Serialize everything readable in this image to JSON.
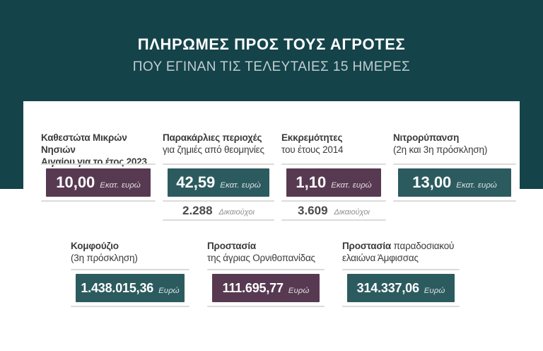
{
  "header": {
    "title": "ΠΛΗΡΩΜΕΣ ΠΡΟΣ ΤΟΥΣ ΑΓΡΟΤΕΣ",
    "subtitle": "ΠΟΥ ΕΓΙΝΑΝ ΤΙΣ ΤΕΛΕΥΤΑΙΕΣ 15 ΗΜΕΡΕΣ"
  },
  "colors": {
    "frame_teal": "#14434A",
    "box_teal": "#2C5B5F",
    "box_purple": "#573A51",
    "divider_gray": "#DBDBDB",
    "card_title_text": "#3B3B3A",
    "subtitle_text": "#C2CECF",
    "beneficiary_number": "#4A4A4A",
    "beneficiary_label": "#8E8E8E"
  },
  "cards": [
    {
      "title_line1_bold": "Καθεστώτα Μικρών Νησιών",
      "title_line2_bold": "Αιγαίου για το έτος 2023",
      "value": "10,00",
      "unit": "Εκατ. ευρώ",
      "box_color": "#573A51"
    },
    {
      "title_line1_bold": "Παρακάρλιες περιοχές",
      "title_line2_regular": "για ζημιές από θεομηνίες",
      "value": "42,59",
      "unit": "Εκατ. ευρώ",
      "box_color": "#2C5B5F",
      "beneficiaries_value": "2.288",
      "beneficiaries_label": "Δικαιούχοι"
    },
    {
      "title_line1_bold": "Εκκρεμότητες",
      "title_line2_regular": "του έτους 2014",
      "value": "1,10",
      "unit": "Εκατ. ευρώ",
      "box_color": "#573A51",
      "beneficiaries_value": "3.609",
      "beneficiaries_label": "Δικαιούχοι"
    },
    {
      "title_line1_bold": "Νιτρορύπανση",
      "title_line2_regular": "(2η και 3η πρόσκληση)",
      "value": "13,00",
      "unit": "Εκατ. ευρώ",
      "box_color": "#2C5B5F"
    },
    {
      "title_line1_bold": "Κομφούζιο",
      "title_line2_regular": "(3η πρόσκληση)",
      "value": "1.438.015,36",
      "unit": "Ευρώ",
      "box_color": "#2C5B5F"
    },
    {
      "title_line1_bold": "Προστασία",
      "title_line2_regular": "της άγριας Ορνιθοπανίδας",
      "value": "111.695,77",
      "unit": "Ευρώ",
      "box_color": "#573A51"
    },
    {
      "title_line1_bold": "Προστασία",
      "title_line1_regular": " παραδοσιακού",
      "title_line2_regular": "ελαιώνα Άμφισσας",
      "value": "314.337,06",
      "unit": "Ευρώ",
      "box_color": "#2C5B5F"
    }
  ],
  "chart_data": {
    "type": "table",
    "title": "ΠΛΗΡΩΜΕΣ ΠΡΟΣ ΤΟΥΣ ΑΓΡΟΤΕΣ ΠΟΥ ΕΓΙΝΑΝ ΤΙΣ ΤΕΛΕΥΤΑΙΕΣ 15 ΗΜΕΡΕΣ",
    "items": [
      {
        "category": "Καθεστώτα Μικρών Νησιών Αιγαίου για το έτος 2023",
        "amount": 10.0,
        "unit": "Εκατ. ευρώ"
      },
      {
        "category": "Παρακάρλιες περιοχές για ζημιές από θεομηνίες",
        "amount": 42.59,
        "unit": "Εκατ. ευρώ",
        "beneficiaries": 2288
      },
      {
        "category": "Εκκρεμότητες του έτους 2014",
        "amount": 1.1,
        "unit": "Εκατ. ευρώ",
        "beneficiaries": 3609
      },
      {
        "category": "Νιτρορύπανση (2η και 3η πρόσκληση)",
        "amount": 13.0,
        "unit": "Εκατ. ευρώ"
      },
      {
        "category": "Κομφούζιο (3η πρόσκληση)",
        "amount": 1438015.36,
        "unit": "Ευρώ"
      },
      {
        "category": "Προστασία της άγριας Ορνιθοπανίδας",
        "amount": 111695.77,
        "unit": "Ευρώ"
      },
      {
        "category": "Προστασία παραδοσιακού ελαιώνα Άμφισσας",
        "amount": 314337.06,
        "unit": "Ευρώ"
      }
    ]
  }
}
